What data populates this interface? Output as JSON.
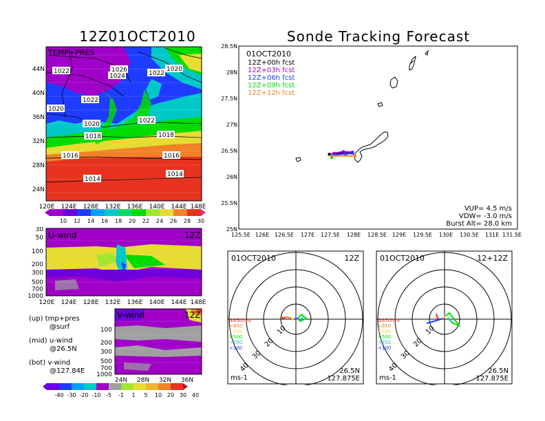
{
  "left_title": "12Z01OCT2010",
  "right_title": "Sonde Tracking Forecast",
  "colors": {
    "fill_purple": "#a000c8",
    "fill_blue": "#1e3cff",
    "fill_cyan": "#00c8c8",
    "fill_green": "#00dc00",
    "fill_yellow": "#e6dc32",
    "fill_orange": "#f08228",
    "fill_red": "#e6321e",
    "fill_gray": "#a0a0a0"
  },
  "chart_data": [
    {
      "type": "heatmap",
      "panel_label": "TEMP+PRES",
      "x_ticks": [
        "120E",
        "124E",
        "128E",
        "132E",
        "136E",
        "140E",
        "144E",
        "148E"
      ],
      "y_ticks": [
        "44N",
        "40N",
        "36N",
        "32N",
        "28N",
        "24N"
      ],
      "isobar_labels": [
        "1022",
        "1026",
        "1024",
        "1022",
        "1020",
        "1022",
        "1020",
        "1022",
        "1020",
        "1018",
        "1018",
        "1016",
        "1016",
        "1014",
        "1014"
      ],
      "colorbar_levels": [
        10,
        12,
        14,
        16,
        18,
        20,
        22,
        24,
        26,
        28,
        30
      ],
      "colorbar_labels": [
        "10",
        "12",
        "14",
        "16",
        "18",
        "20",
        "22",
        "24",
        "26",
        "28",
        "30"
      ]
    },
    {
      "type": "line",
      "title_date": "01OCT2010",
      "legend": [
        {
          "label": "12Z+00h fcst",
          "color": "#000000"
        },
        {
          "label": "12Z+03h fcst",
          "color": "#a000c8"
        },
        {
          "label": "12Z+06h fcst",
          "color": "#1e3cff"
        },
        {
          "label": "12Z+09h fcst",
          "color": "#00dc00"
        },
        {
          "label": "12Z+12h fcst",
          "color": "#f08228"
        }
      ],
      "x_ticks": [
        "125.5E",
        "126E",
        "126.5E",
        "127E",
        "127.5E",
        "128E",
        "128.5E",
        "129E",
        "129.5E",
        "130E",
        "130.5E",
        "131E",
        "131.5E"
      ],
      "y_ticks": [
        "28.5N",
        "28N",
        "27.5N",
        "27N",
        "26.5N",
        "26N",
        "25.5N",
        "25N"
      ],
      "xlim": [
        125.5,
        131.5
      ],
      "ylim": [
        25,
        28.5
      ],
      "series": [
        {
          "name": "12Z+00h fcst",
          "color": "#000000",
          "x": [
            127.45,
            127.9
          ],
          "y": [
            26.43,
            26.46
          ]
        },
        {
          "name": "12Z+03h fcst",
          "color": "#a000c8",
          "x": [
            127.55,
            127.75,
            127.95
          ],
          "y": [
            26.45,
            26.48,
            26.47
          ]
        },
        {
          "name": "12Z+06h fcst",
          "color": "#1e3cff",
          "x": [
            127.5,
            127.8,
            127.95
          ],
          "y": [
            26.42,
            26.44,
            26.45
          ]
        },
        {
          "name": "12Z+09h fcst",
          "color": "#00dc00",
          "x": [
            127.5
          ],
          "y": [
            26.37
          ]
        },
        {
          "name": "12Z+12h fcst",
          "color": "#f08228",
          "x": [
            127.5,
            128.0
          ],
          "y": [
            26.4,
            26.4
          ]
        }
      ],
      "info": {
        "vup": "VUP=  4.5 m/s",
        "vdw": "VDW= -3.0 m/s",
        "burst": "Burst Alt= 28.0 km"
      }
    },
    {
      "type": "heatmap",
      "panel_label": "U-wind",
      "time_label": "12Z",
      "y_ticks": [
        "30",
        "50",
        "100",
        "200",
        "300",
        "500",
        "700",
        "1000"
      ],
      "x_ticks": [
        "120E",
        "124E",
        "128E",
        "132E",
        "136E",
        "140E",
        "144E",
        "148E"
      ]
    },
    {
      "type": "heatmap",
      "panel_label": "V-wind",
      "time_label": "12Z",
      "y_ticks": [
        "100",
        "200",
        "300",
        "500",
        "700",
        "1000"
      ],
      "x_ticks": [
        "24N",
        "28N",
        "32N",
        "36N"
      ],
      "colorbar_labels": [
        "-40",
        "-30",
        "-20",
        "-10",
        "-5",
        "-1",
        "1",
        "5",
        "10",
        "20",
        "30",
        "40"
      ]
    },
    {
      "type": "scatter",
      "date": "01OCT2010",
      "time": "12Z",
      "ring_labels": [
        "10",
        "20",
        "30",
        "40"
      ],
      "levels": [
        "≥850hPa",
        "<850",
        "<700",
        "<500",
        "<250",
        "<100"
      ],
      "level_colors": [
        "#e6321e",
        "#f08228",
        "#e6dc32",
        "#00dc00",
        "#00c8c8",
        "#1e3cff"
      ],
      "unit": "ms-1",
      "lat": "26.5N",
      "lon": "127.875E"
    },
    {
      "type": "scatter",
      "date": "01OCT2010",
      "time": "12+12Z",
      "ring_labels": [
        "10",
        "20",
        "30",
        "40"
      ],
      "levels": [
        "≥850hPa",
        "<850",
        "<700",
        "<500",
        "<250",
        "<100"
      ],
      "level_colors": [
        "#e6321e",
        "#f08228",
        "#e6dc32",
        "#00dc00",
        "#00c8c8",
        "#1e3cff"
      ],
      "unit": "ms-1",
      "lat": "26.5N",
      "lon": "127.875E"
    }
  ],
  "notes": {
    "up": "(up) tmp+pres",
    "up2": "@surf",
    "mid": "(mid) u-wind",
    "mid2": "@26.5N",
    "bot": "(bot) v-wind",
    "bot2": "@127.84E"
  }
}
